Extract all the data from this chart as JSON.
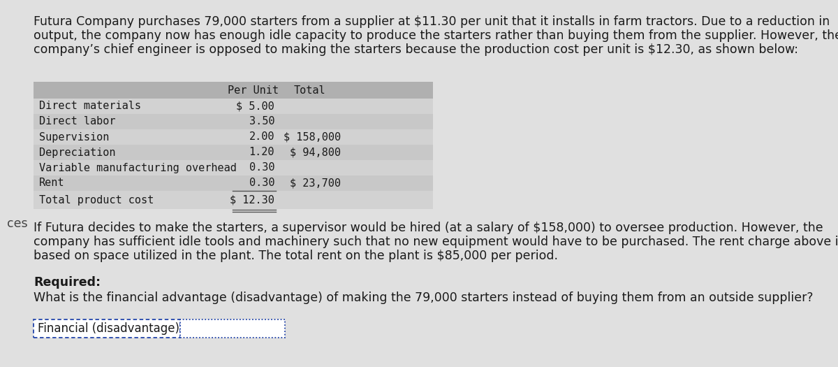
{
  "bg_color": "#e0e0e0",
  "intro_text_lines": [
    "Futura Company purchases 79,000 starters from a supplier at $11.30 per unit that it installs in farm tractors. Due to a reduction in",
    "output, the company now has enough idle capacity to produce the starters rather than buying them from the supplier. However, the",
    "company’s chief engineer is opposed to making the starters because the production cost per unit is $12.30, as shown below:"
  ],
  "table_header_per_unit": "Per Unit",
  "table_header_total": "Total",
  "table_rows": [
    {
      "label": "Direct materials",
      "per_unit": "$ 5.00",
      "total": ""
    },
    {
      "label": "Direct labor",
      "per_unit": "3.50",
      "total": ""
    },
    {
      "label": "Supervision",
      "per_unit": "2.00",
      "total": "$ 158,000"
    },
    {
      "label": "Depreciation",
      "per_unit": "1.20",
      "total": "$ 94,800"
    },
    {
      "label": "Variable manufacturing overhead",
      "per_unit": "0.30",
      "total": ""
    },
    {
      "label": "Rent",
      "per_unit": "0.30",
      "total": "$ 23,700"
    }
  ],
  "table_total_label": "Total product cost",
  "table_total_per_unit": "$ 12.30",
  "middle_text_lines": [
    "If Futura decides to make the starters, a supervisor would be hired (at a salary of $158,000) to oversee production. However, the",
    "company has sufficient idle tools and machinery such that no new equipment would have to be purchased. The rent charge above is",
    "based on space utilized in the plant. The total rent on the plant is $85,000 per period."
  ],
  "required_label": "Required:",
  "required_text": "What is the financial advantage (disadvantage) of making the 79,000 starters instead of buying them from an outside supplier?",
  "answer_box_label": "Financial (disadvantage)",
  "left_label": "ces",
  "table_bg": "#c8c8c8",
  "header_bg": "#b0b0b0",
  "row_bg_even": "#d2d2d2",
  "row_bg_odd": "#c8c8c8",
  "text_color": "#1a1a1a",
  "font_size_body": 12.5,
  "font_size_table": 11.0
}
